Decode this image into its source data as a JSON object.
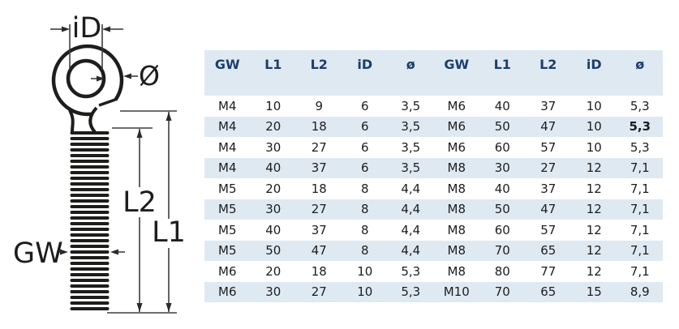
{
  "diagram": {
    "labels": {
      "inner_diameter": "iD",
      "wire_diameter": "Ø",
      "thread_length": "L2",
      "total_length": "L1",
      "thread_size": "GW"
    }
  },
  "table": {
    "header": [
      "GW",
      "L1",
      "L2",
      "iD",
      "ø",
      "GW",
      "L1",
      "L2",
      "iD",
      "ø"
    ],
    "rows": [
      [
        "M4",
        "10",
        "9",
        "6",
        "3,5",
        "M6",
        "40",
        "37",
        "10",
        "5,3"
      ],
      [
        "M4",
        "20",
        "18",
        "6",
        "3,5",
        "M6",
        "50",
        "47",
        "10",
        "5,3"
      ],
      [
        "M4",
        "30",
        "27",
        "6",
        "3,5",
        "M6",
        "60",
        "57",
        "10",
        "5,3"
      ],
      [
        "M4",
        "40",
        "37",
        "6",
        "3,5",
        "M8",
        "30",
        "27",
        "12",
        "7,1"
      ],
      [
        "M5",
        "20",
        "18",
        "8",
        "4,4",
        "M8",
        "40",
        "37",
        "12",
        "7,1"
      ],
      [
        "M5",
        "30",
        "27",
        "8",
        "4,4",
        "M8",
        "50",
        "47",
        "12",
        "7,1"
      ],
      [
        "M5",
        "40",
        "37",
        "8",
        "4,4",
        "M8",
        "60",
        "57",
        "12",
        "7,1"
      ],
      [
        "M5",
        "50",
        "47",
        "8",
        "4,4",
        "M8",
        "70",
        "65",
        "12",
        "7,1"
      ],
      [
        "M6",
        "20",
        "18",
        "10",
        "5,3",
        "M8",
        "80",
        "77",
        "12",
        "7,1"
      ],
      [
        "M6",
        "30",
        "27",
        "10",
        "5,3",
        "M10",
        "70",
        "65",
        "15",
        "8,9"
      ]
    ],
    "bold_cell": {
      "row": 1,
      "col": 9
    }
  },
  "colors": {
    "stripe_blue": "#dfe9f2",
    "header_text": "#1c3e6d",
    "cell_text": "#1d1d1d",
    "drawing_ink": "#1d1d1b",
    "dimension_line": "#3d3d3d"
  }
}
